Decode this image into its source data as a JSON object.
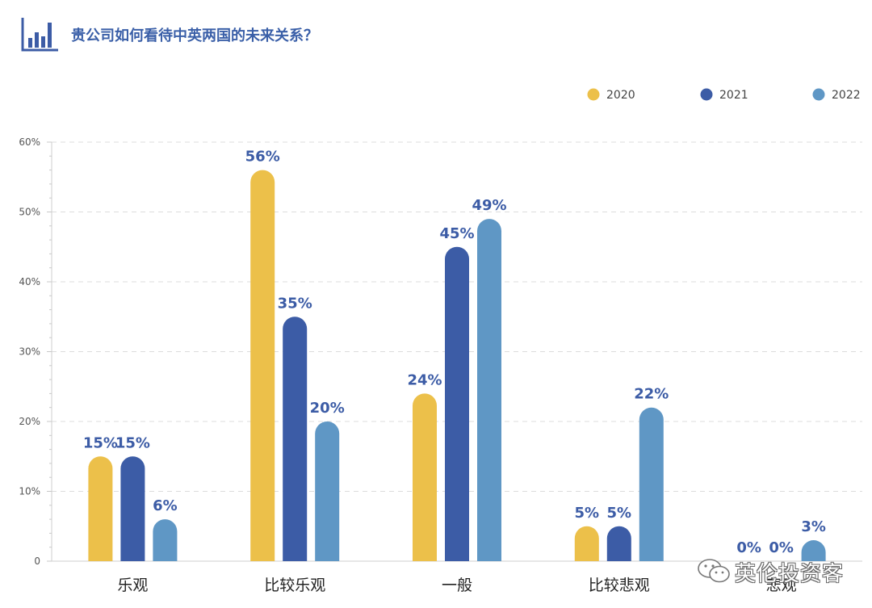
{
  "header": {
    "title": "贵公司如何看待中英两国的未来关系？",
    "logo_icon": "bar-chart-icon"
  },
  "watermark": {
    "text": "英伦投资客",
    "icon": "wechat-icon"
  },
  "chart_data": {
    "type": "bar",
    "title": "贵公司如何看待中英两国的未来关系？",
    "xlabel": "",
    "ylabel": "",
    "categories": [
      "乐观",
      "比较乐观",
      "一般",
      "比较悲观",
      "悲观"
    ],
    "series": [
      {
        "name": "2020",
        "color": "#ecc04a",
        "values": [
          15,
          56,
          24,
          5,
          0
        ]
      },
      {
        "name": "2021",
        "color": "#3c5ca6",
        "values": [
          15,
          35,
          45,
          5,
          0
        ]
      },
      {
        "name": "2022",
        "color": "#5f97c5",
        "values": [
          6,
          20,
          49,
          22,
          3
        ]
      }
    ],
    "ylim": [
      0,
      60
    ],
    "yticks": [
      0,
      10,
      20,
      30,
      40,
      50,
      60
    ],
    "ytick_labels": [
      "0",
      "10%",
      "20%",
      "30%",
      "40%",
      "50%",
      "60%"
    ],
    "value_suffix": "%",
    "legend_position": "top-right",
    "grid": "horizontal-dashed",
    "label_color": "#3c5ca6"
  }
}
